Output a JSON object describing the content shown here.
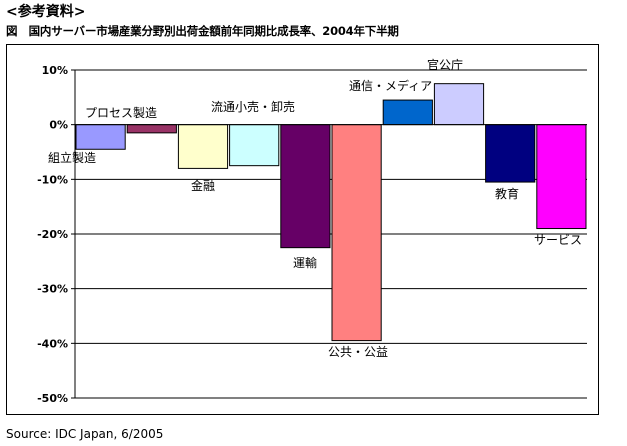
{
  "heading": "<参考資料>",
  "caption": "図　国内サーバー市場産業分野別出荷金額前年同期比成長率、2004年下半期",
  "source": "Source: IDC Japan, 6/2005",
  "chart_data": {
    "type": "bar",
    "title": "",
    "xlabel": "",
    "ylabel": "",
    "ylim": [
      -50,
      10
    ],
    "yticks": [
      10,
      0,
      -10,
      -20,
      -30,
      -40,
      -50
    ],
    "ytick_labels": [
      "10%",
      "0%",
      "-10%",
      "-20%",
      "-30%",
      "-40%",
      "-50%"
    ],
    "grid": true,
    "categories": [
      "組立製造",
      "プロセス製造",
      "金融",
      "流通小売・卸売",
      "運輸",
      "公共・公益",
      "通信・メディア",
      "官公庁",
      "教育",
      "サービス"
    ],
    "values": [
      -4.5,
      -1.5,
      -8.0,
      -7.5,
      -22.5,
      -39.5,
      4.5,
      7.5,
      -10.5,
      -19.0
    ],
    "colors": [
      "#9999ff",
      "#993366",
      "#ffffcc",
      "#ccffff",
      "#660066",
      "#ff8080",
      "#0066cc",
      "#ccccff",
      "#000080",
      "#ff00ff"
    ]
  }
}
